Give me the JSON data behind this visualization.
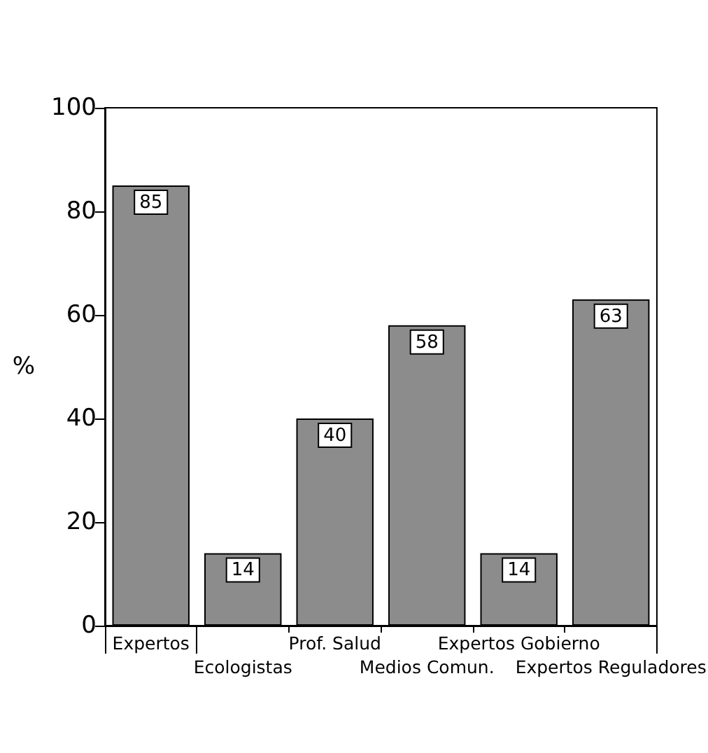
{
  "chart_data": {
    "type": "bar",
    "ylabel": "%",
    "categories": [
      "Expertos",
      "Ecologistas",
      "Prof. Salud",
      "Medios Comun.",
      "Expertos Gobierno",
      "Expertos Reguladores"
    ],
    "values": [
      85,
      14,
      40,
      58,
      14,
      63
    ],
    "color": "#8c8c8c",
    "ylim": [
      0,
      100
    ],
    "yticks": [
      0,
      20,
      40,
      60,
      80,
      100
    ],
    "data_labels": true
  }
}
